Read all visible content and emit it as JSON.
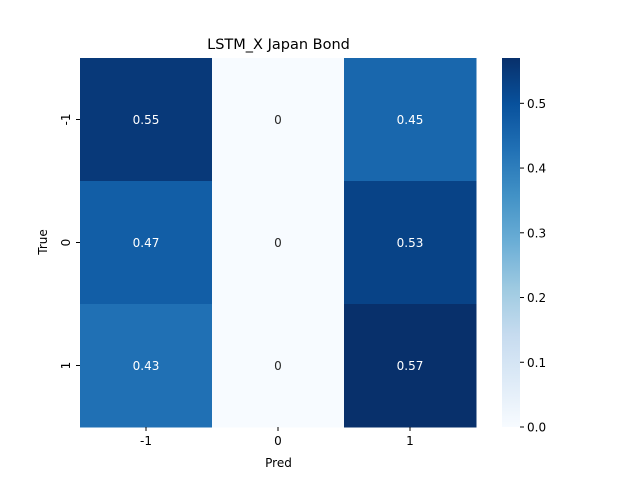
{
  "chart_data": {
    "type": "heatmap",
    "title": "LSTM_X Japan Bond",
    "xlabel": "Pred",
    "ylabel": "True",
    "x_categories": [
      "-1",
      "0",
      "1"
    ],
    "y_categories": [
      "-1",
      "0",
      "1"
    ],
    "values": [
      [
        0.55,
        0,
        0.45
      ],
      [
        0.47,
        0,
        0.53
      ],
      [
        0.43,
        0,
        0.57
      ]
    ],
    "cell_labels": [
      [
        "0.55",
        "0",
        "0.45"
      ],
      [
        "0.47",
        "0",
        "0.53"
      ],
      [
        "0.43",
        "0",
        "0.57"
      ]
    ],
    "color_range": [
      0,
      0.57
    ],
    "colormap": "Blues",
    "colorbar_ticks": [
      "0.0",
      "0.1",
      "0.2",
      "0.3",
      "0.4",
      "0.5"
    ],
    "colorbar_tick_values": [
      0,
      0.1,
      0.2,
      0.3,
      0.4,
      0.5
    ]
  }
}
